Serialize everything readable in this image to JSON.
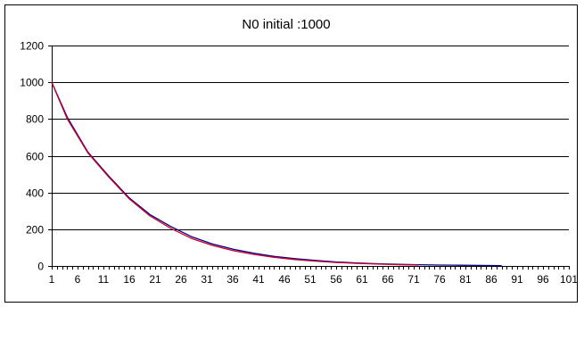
{
  "chart_data": {
    "type": "line",
    "title": "N0 initial :1000",
    "xlabel": "",
    "ylabel": "",
    "xlim": [
      1,
      101
    ],
    "ylim": [
      0,
      1200
    ],
    "y_ticks": [
      0,
      200,
      400,
      600,
      800,
      1000,
      1200
    ],
    "x_tick_labels": [
      "1",
      "6",
      "11",
      "16",
      "21",
      "26",
      "31",
      "36",
      "41",
      "46",
      "51",
      "56",
      "61",
      "66",
      "71",
      "76",
      "81",
      "86",
      "91",
      "96",
      "101"
    ],
    "grid": "horizontal",
    "legend": "none",
    "series": [
      {
        "color": "#000080",
        "x": [
          1,
          4,
          8,
          12,
          16,
          20,
          24,
          28,
          32,
          36,
          40,
          44,
          48,
          52,
          56,
          60,
          64,
          68,
          72,
          76,
          80,
          84,
          88
        ],
        "y": [
          1000,
          810,
          620,
          490,
          370,
          280,
          215,
          160,
          120,
          92,
          70,
          52,
          40,
          30,
          22,
          16,
          12,
          9,
          7,
          5,
          4,
          3,
          2
        ]
      },
      {
        "color": "#cc0033",
        "x": [
          1,
          4,
          8,
          12,
          16,
          20,
          24,
          28,
          32,
          36,
          40,
          44,
          48,
          52,
          56,
          60,
          64,
          68,
          72
        ],
        "y": [
          1000,
          800,
          615,
          485,
          365,
          272,
          205,
          150,
          112,
          84,
          63,
          47,
          35,
          26,
          19,
          14,
          10,
          7,
          5
        ]
      }
    ]
  }
}
